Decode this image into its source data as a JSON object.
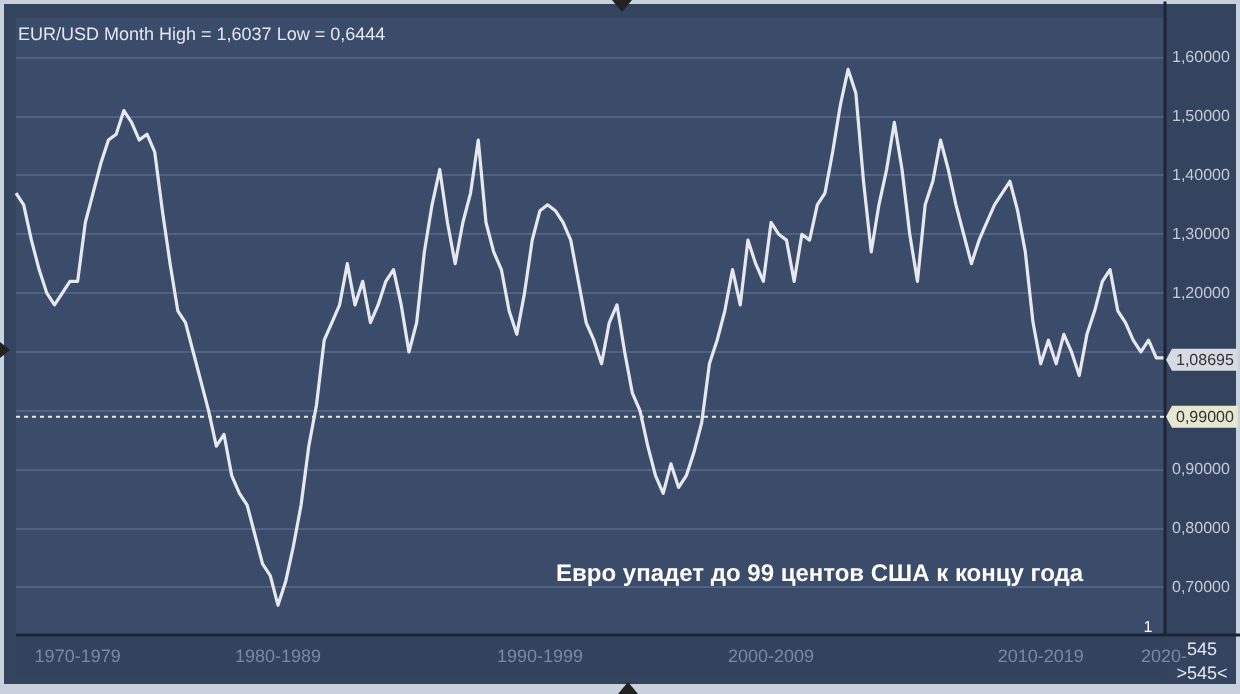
{
  "chart_data": {
    "type": "line",
    "title": "EUR/USD Month High = 1,6037 Low = 0,6444",
    "categories": [
      null,
      null,
      null,
      null,
      null,
      null,
      null,
      null,
      "1970-1979",
      null,
      null,
      null,
      null,
      null,
      null,
      null,
      null,
      null,
      null,
      null,
      null,
      null,
      null,
      null,
      null,
      null,
      null,
      null,
      null,
      null,
      null,
      null,
      null,
      null,
      "1980-1989",
      null,
      null,
      null,
      null,
      null,
      null,
      null,
      null,
      null,
      null,
      null,
      null,
      null,
      null,
      null,
      null,
      null,
      null,
      null,
      null,
      null,
      null,
      null,
      null,
      null,
      null,
      null,
      null,
      null,
      null,
      null,
      null,
      null,
      "1990-1999",
      null,
      null,
      null,
      null,
      null,
      null,
      null,
      null,
      null,
      null,
      null,
      null,
      null,
      null,
      null,
      null,
      null,
      null,
      null,
      null,
      null,
      null,
      null,
      null,
      null,
      null,
      null,
      null,
      null,
      "2000-2009",
      null,
      null,
      null,
      null,
      null,
      null,
      null,
      null,
      null,
      null,
      null,
      null,
      null,
      null,
      null,
      null,
      null,
      null,
      null,
      null,
      null,
      null,
      null,
      null,
      null,
      null,
      null,
      null,
      null,
      null,
      null,
      null,
      null,
      null,
      "2010-2019",
      null,
      null,
      null,
      null,
      null,
      null,
      null,
      null,
      null,
      null,
      null,
      null,
      null,
      null,
      null,
      "2020-"
    ],
    "series": [
      {
        "color": "#e6e8ee",
        "values": [
          1.37,
          1.35,
          1.29,
          1.24,
          1.2,
          1.18,
          1.2,
          1.22,
          1.22,
          1.32,
          1.37,
          1.42,
          1.46,
          1.47,
          1.51,
          1.49,
          1.46,
          1.47,
          1.44,
          1.34,
          1.25,
          1.17,
          1.15,
          1.1,
          1.05,
          1.0,
          0.94,
          0.96,
          0.89,
          0.86,
          0.84,
          0.79,
          0.74,
          0.72,
          0.67,
          0.71,
          0.77,
          0.84,
          0.94,
          1.01,
          1.12,
          1.15,
          1.18,
          1.25,
          1.18,
          1.22,
          1.15,
          1.18,
          1.22,
          1.24,
          1.18,
          1.1,
          1.15,
          1.27,
          1.35,
          1.41,
          1.32,
          1.25,
          1.32,
          1.37,
          1.46,
          1.32,
          1.27,
          1.24,
          1.17,
          1.13,
          1.2,
          1.29,
          1.34,
          1.35,
          1.34,
          1.32,
          1.29,
          1.22,
          1.15,
          1.12,
          1.08,
          1.15,
          1.18,
          1.1,
          1.03,
          1.0,
          0.94,
          0.89,
          0.86,
          0.91,
          0.87,
          0.89,
          0.93,
          0.98,
          1.08,
          1.12,
          1.17,
          1.24,
          1.18,
          1.29,
          1.25,
          1.22,
          1.32,
          1.3,
          1.29,
          1.22,
          1.3,
          1.29,
          1.35,
          1.37,
          1.44,
          1.52,
          1.58,
          1.54,
          1.39,
          1.27,
          1.35,
          1.41,
          1.49,
          1.41,
          1.3,
          1.22,
          1.35,
          1.39,
          1.46,
          1.41,
          1.35,
          1.3,
          1.25,
          1.29,
          1.32,
          1.35,
          1.37,
          1.39,
          1.34,
          1.27,
          1.15,
          1.08,
          1.12,
          1.08,
          1.13,
          1.1,
          1.06,
          1.13,
          1.17,
          1.22,
          1.24,
          1.17,
          1.15,
          1.12,
          1.1,
          1.12,
          1.09,
          1.09
        ]
      }
    ],
    "ylim": [
      0.621,
      1.668
    ],
    "yticks": [
      {
        "value": 0.7,
        "label": "0,70000"
      },
      {
        "value": 0.8,
        "label": "0,80000"
      },
      {
        "value": 0.9,
        "label": "0,90000"
      },
      {
        "value": 1.0,
        "label": null
      },
      {
        "value": 1.1,
        "label": null
      },
      {
        "value": 1.2,
        "label": "1,20000"
      },
      {
        "value": 1.3,
        "label": "1,30000"
      },
      {
        "value": 1.4,
        "label": "1,40000"
      },
      {
        "value": 1.5,
        "label": "1,50000"
      },
      {
        "value": 1.6,
        "label": "1,60000"
      }
    ],
    "ref_lines": [
      {
        "axis": "y",
        "value": 0.99,
        "label": "0,99000",
        "color": "#e8e8d0",
        "line_style": "dotted"
      }
    ],
    "annotations": [
      {
        "text": "1,08695",
        "y": 1.08695
      },
      "Евро упадет до 99 центов США к концу года",
      "1",
      "545",
      ">545<"
    ],
    "grid": "y",
    "legend": false,
    "marker": "none",
    "line_style": "solid"
  }
}
